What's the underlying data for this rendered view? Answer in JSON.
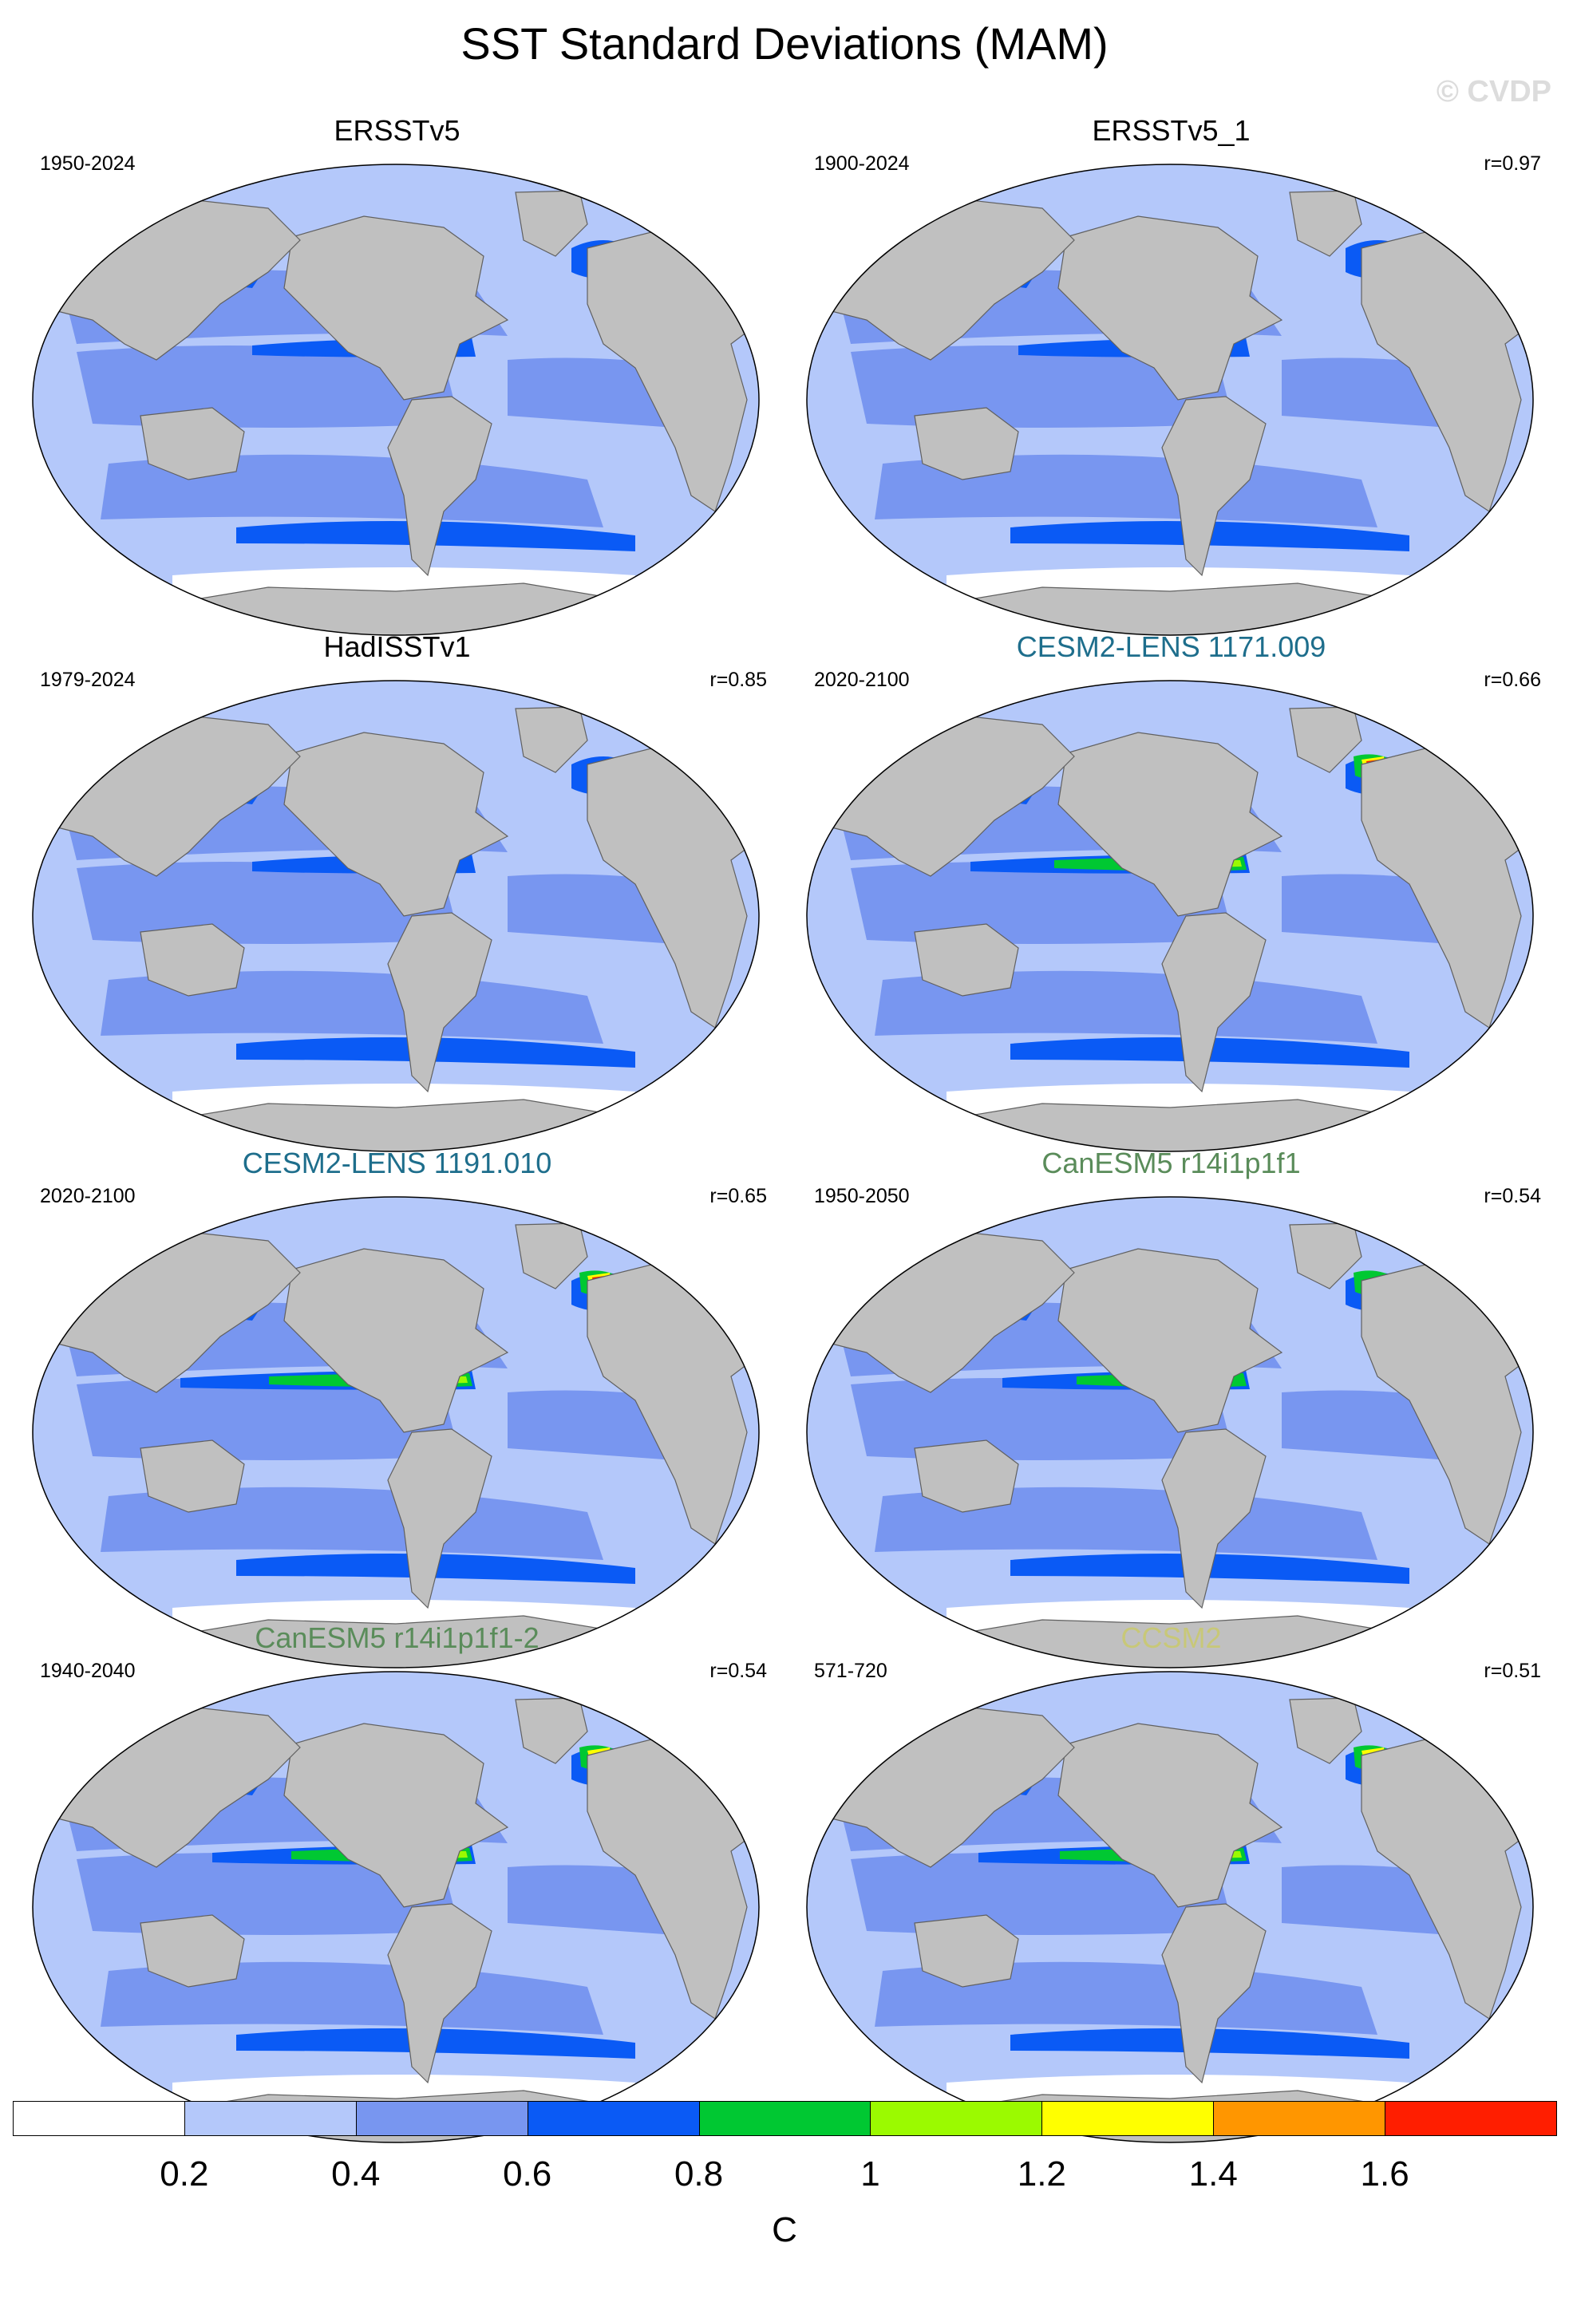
{
  "title": "SST Standard Deviations (MAM)",
  "watermark": "© CVDP",
  "chart_data": {
    "type": "heatmap",
    "units": "C",
    "colorbar": {
      "ticks": [
        "0.2",
        "0.4",
        "0.6",
        "0.8",
        "1",
        "1.2",
        "1.4",
        "1.6"
      ],
      "colors": [
        "#ffffff",
        "#b4c8fa",
        "#7896f0",
        "#0a5af5",
        "#00c832",
        "#9bfa00",
        "#ffff00",
        "#ff9600",
        "#ff1e00"
      ]
    },
    "panels": [
      {
        "title": "ERSSTv5",
        "years": "1950-2024",
        "r": "",
        "title_color": "#000000",
        "variant": 0
      },
      {
        "title": "ERSSTv5_1",
        "years": "1900-2024",
        "r": "r=0.97",
        "title_color": "#000000",
        "variant": 1
      },
      {
        "title": "HadISSTv1",
        "years": "1979-2024",
        "r": "r=0.85",
        "title_color": "#000000",
        "variant": 2
      },
      {
        "title": "CESM2-LENS 1171.009",
        "years": "2020-2100",
        "r": "r=0.66",
        "title_color": "#1e6e8c",
        "variant": 3
      },
      {
        "title": "CESM2-LENS 1191.010",
        "years": "2020-2100",
        "r": "r=0.65",
        "title_color": "#1e6e8c",
        "variant": 4
      },
      {
        "title": "CanESM5 r14i1p1f1",
        "years": "1950-2050",
        "r": "r=0.54",
        "title_color": "#5a8c5a",
        "variant": 5
      },
      {
        "title": "CanESM5 r14i1p1f1-2",
        "years": "1940-2040",
        "r": "r=0.54",
        "title_color": "#5a8c5a",
        "variant": 6
      },
      {
        "title": "CCSM2",
        "years": "571-720",
        "r": "r=0.51",
        "title_color": "#c8c878",
        "variant": 7
      }
    ]
  }
}
